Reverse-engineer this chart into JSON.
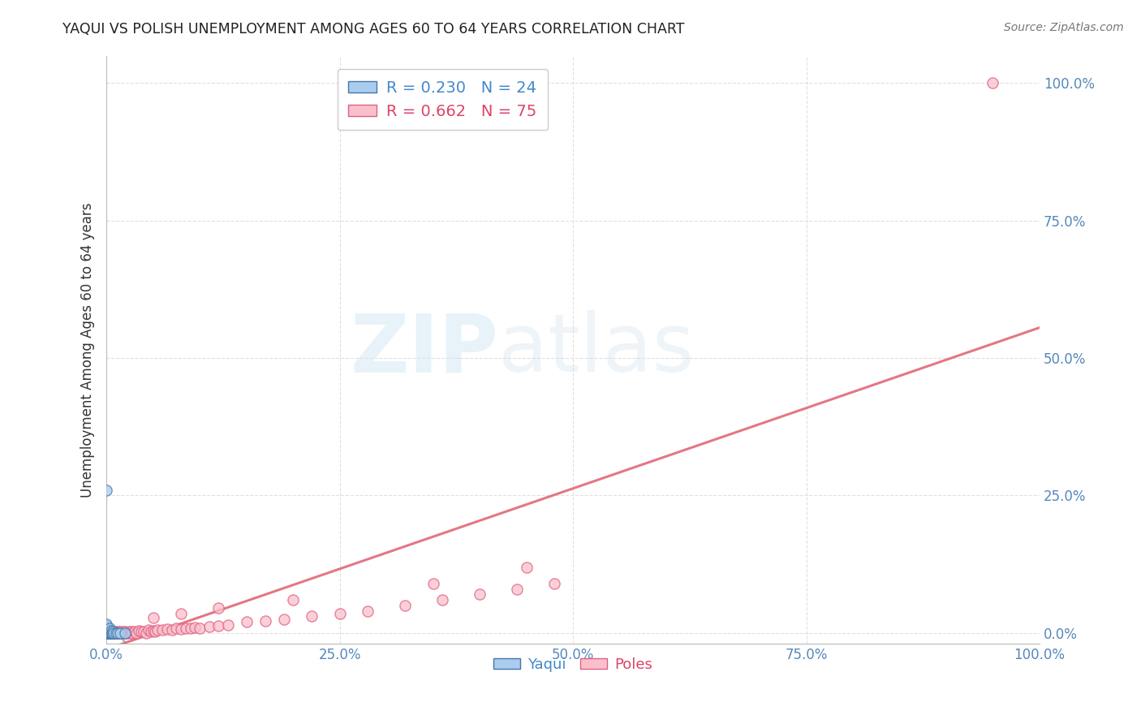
{
  "title": "YAQUI VS POLISH UNEMPLOYMENT AMONG AGES 60 TO 64 YEARS CORRELATION CHART",
  "source": "Source: ZipAtlas.com",
  "ylabel": "Unemployment Among Ages 60 to 64 years",
  "xlabel": "",
  "xlim": [
    0.0,
    1.0
  ],
  "ylim": [
    -0.02,
    1.05
  ],
  "xticks": [
    0.0,
    0.25,
    0.5,
    0.75,
    1.0
  ],
  "yticks": [
    0.0,
    0.25,
    0.5,
    0.75,
    1.0
  ],
  "tick_labels_x": [
    "0.0%",
    "25.0%",
    "50.0%",
    "75.0%",
    "100.0%"
  ],
  "tick_labels_y": [
    "0.0%",
    "25.0%",
    "50.0%",
    "75.0%",
    "100.0%"
  ],
  "yaqui_color": "#92B4D8",
  "yaqui_edge": "#4477AA",
  "yaqui_face": "#AACCEE",
  "poles_color": "#F5A0B0",
  "poles_edge": "#E06080",
  "poles_face": "#F9C0CC",
  "R_yaqui": 0.23,
  "N_yaqui": 24,
  "R_poles": 0.662,
  "N_poles": 75,
  "background_color": "#FFFFFF",
  "grid_color": "#DDDDDD",
  "yaqui_line_color": "#88AACC",
  "poles_line_color": "#E06878",
  "watermark_zip": "ZIP",
  "watermark_atlas": "atlas",
  "yaqui_x": [
    0.0,
    0.0,
    0.0,
    0.0,
    0.0,
    0.0,
    0.0,
    0.0,
    0.0,
    0.002,
    0.002,
    0.003,
    0.003,
    0.004,
    0.005,
    0.005,
    0.006,
    0.007,
    0.008,
    0.01,
    0.012,
    0.015,
    0.02,
    0.0
  ],
  "yaqui_y": [
    0.0,
    0.0,
    0.0,
    0.0,
    0.005,
    0.008,
    0.01,
    0.013,
    0.016,
    0.0,
    0.005,
    0.0,
    0.008,
    0.0,
    0.0,
    0.004,
    0.0,
    0.003,
    0.0,
    0.0,
    0.0,
    0.0,
    0.0,
    0.26
  ],
  "poles_x": [
    0.0,
    0.0,
    0.0,
    0.0,
    0.0,
    0.0,
    0.002,
    0.002,
    0.003,
    0.004,
    0.004,
    0.005,
    0.005,
    0.006,
    0.007,
    0.007,
    0.008,
    0.009,
    0.01,
    0.01,
    0.012,
    0.013,
    0.014,
    0.015,
    0.015,
    0.017,
    0.018,
    0.02,
    0.02,
    0.022,
    0.024,
    0.025,
    0.027,
    0.028,
    0.03,
    0.032,
    0.035,
    0.037,
    0.04,
    0.042,
    0.045,
    0.048,
    0.05,
    0.052,
    0.055,
    0.06,
    0.065,
    0.07,
    0.075,
    0.08,
    0.085,
    0.09,
    0.095,
    0.1,
    0.11,
    0.12,
    0.13,
    0.15,
    0.17,
    0.19,
    0.22,
    0.25,
    0.28,
    0.32,
    0.36,
    0.4,
    0.44,
    0.48,
    0.05,
    0.08,
    0.12,
    0.2,
    0.35,
    0.45,
    0.95
  ],
  "poles_y": [
    0.0,
    0.0,
    0.0,
    0.002,
    0.003,
    0.005,
    0.0,
    0.003,
    0.0,
    0.0,
    0.002,
    0.0,
    0.002,
    0.0,
    0.0,
    0.003,
    0.0,
    0.0,
    0.0,
    0.002,
    0.0,
    0.003,
    0.0,
    0.0,
    0.002,
    0.0,
    0.002,
    0.0,
    0.003,
    0.0,
    0.003,
    0.0,
    0.002,
    0.0,
    0.003,
    0.0,
    0.004,
    0.002,
    0.003,
    0.0,
    0.005,
    0.003,
    0.004,
    0.002,
    0.006,
    0.005,
    0.007,
    0.006,
    0.008,
    0.007,
    0.009,
    0.008,
    0.01,
    0.009,
    0.012,
    0.013,
    0.015,
    0.02,
    0.022,
    0.025,
    0.03,
    0.035,
    0.04,
    0.05,
    0.06,
    0.07,
    0.08,
    0.09,
    0.028,
    0.035,
    0.045,
    0.06,
    0.09,
    0.12,
    1.0
  ]
}
